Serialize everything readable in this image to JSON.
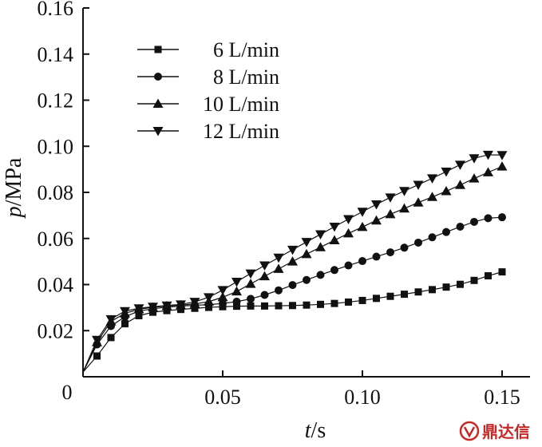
{
  "chart_data": {
    "type": "line",
    "title": "",
    "xlabel_var": "t",
    "xlabel_unit": "/s",
    "ylabel_var": "p",
    "ylabel_unit": "/MPa",
    "xlim": [
      0,
      0.16
    ],
    "ylim": [
      0,
      0.16
    ],
    "x_ticks": [
      0.05,
      0.1,
      0.15
    ],
    "x_tick_labels": [
      "0.05",
      "0.10",
      "0.15"
    ],
    "y_ticks": [
      0.02,
      0.04,
      0.06,
      0.08,
      0.1,
      0.12,
      0.14,
      0.16
    ],
    "y_tick_labels": [
      "0.02",
      "0.04",
      "0.06",
      "0.08",
      "0.10",
      "0.12",
      "0.14",
      "0.16"
    ],
    "origin_label": "0",
    "grid": false,
    "legend_position": "top-left",
    "x": [
      0,
      0.005,
      0.01,
      0.015,
      0.02,
      0.025,
      0.03,
      0.035,
      0.04,
      0.045,
      0.05,
      0.055,
      0.06,
      0.065,
      0.07,
      0.075,
      0.08,
      0.085,
      0.09,
      0.095,
      0.1,
      0.105,
      0.11,
      0.115,
      0.12,
      0.125,
      0.13,
      0.135,
      0.14,
      0.145,
      0.15
    ],
    "series": [
      {
        "name": "6 L/min",
        "marker": "square",
        "values": [
          0.002,
          0.009,
          0.017,
          0.023,
          0.0265,
          0.028,
          0.0287,
          0.0292,
          0.0297,
          0.0301,
          0.0304,
          0.0306,
          0.0307,
          0.0307,
          0.0308,
          0.0309,
          0.0311,
          0.0314,
          0.0318,
          0.0324,
          0.0331,
          0.034,
          0.0349,
          0.0358,
          0.0368,
          0.0378,
          0.0389,
          0.0401,
          0.0418,
          0.0438,
          0.0455
        ]
      },
      {
        "name": "8 L/min",
        "marker": "circle",
        "values": [
          0.002,
          0.014,
          0.022,
          0.026,
          0.0285,
          0.0295,
          0.0302,
          0.0307,
          0.031,
          0.0313,
          0.0318,
          0.0326,
          0.0338,
          0.0355,
          0.0375,
          0.0398,
          0.042,
          0.0442,
          0.0463,
          0.0483,
          0.0502,
          0.0521,
          0.054,
          0.056,
          0.0582,
          0.0605,
          0.0628,
          0.0651,
          0.0672,
          0.0688,
          0.0692
        ]
      },
      {
        "name": "10 L/min",
        "marker": "triangle-up",
        "values": [
          0.002,
          0.015,
          0.024,
          0.0275,
          0.0293,
          0.0301,
          0.0307,
          0.0311,
          0.0316,
          0.0326,
          0.0345,
          0.037,
          0.0403,
          0.0436,
          0.0468,
          0.05,
          0.0532,
          0.0562,
          0.0592,
          0.0622,
          0.065,
          0.0678,
          0.0705,
          0.073,
          0.0756,
          0.078,
          0.0805,
          0.0832,
          0.086,
          0.0887,
          0.0912
        ]
      },
      {
        "name": "12 L/min",
        "marker": "triangle-down",
        "values": [
          0.002,
          0.016,
          0.025,
          0.0285,
          0.0297,
          0.0304,
          0.0309,
          0.0314,
          0.0325,
          0.0345,
          0.0376,
          0.0412,
          0.0448,
          0.0483,
          0.0517,
          0.0551,
          0.0585,
          0.0618,
          0.0651,
          0.0684,
          0.0716,
          0.0748,
          0.0778,
          0.0806,
          0.0833,
          0.0861,
          0.089,
          0.092,
          0.0948,
          0.0963,
          0.0962
        ]
      }
    ]
  },
  "watermark": {
    "text": "鼎达信",
    "color": "#c62828"
  }
}
